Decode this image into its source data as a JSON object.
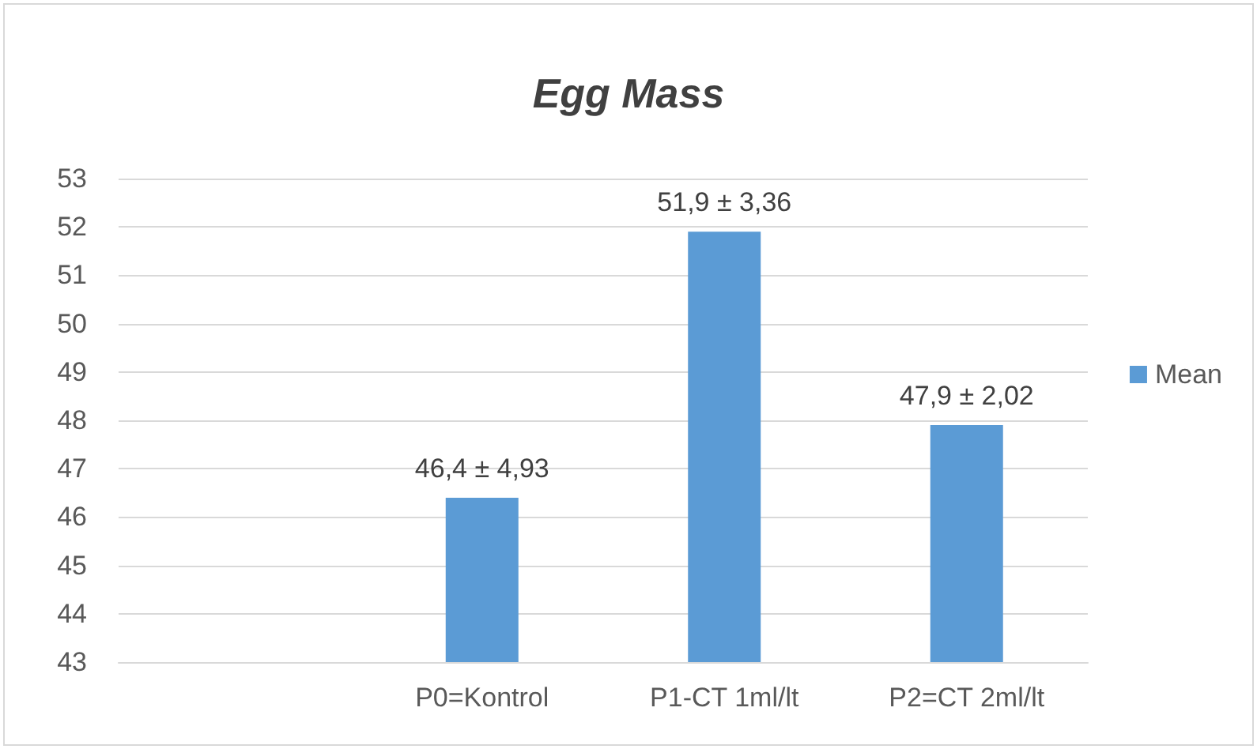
{
  "chart_data": {
    "type": "bar",
    "title": "Egg Mass",
    "categories": [
      null,
      "P0=Kontrol",
      "P1-CT 1ml/lt",
      "P2=CT 2ml/lt"
    ],
    "series": [
      {
        "name": "Mean",
        "color": "#5b9bd5",
        "values": [
          null,
          46.4,
          51.9,
          47.9
        ],
        "value_labels": [
          null,
          "46,4 ± 4,93",
          "51,9 ± 3,36",
          "47,9 ± 2,02"
        ]
      }
    ],
    "ylim": [
      43,
      53
    ],
    "yticks": [
      43,
      44,
      45,
      46,
      47,
      48,
      49,
      50,
      51,
      52,
      53
    ],
    "grid": "y",
    "legend": "right"
  }
}
